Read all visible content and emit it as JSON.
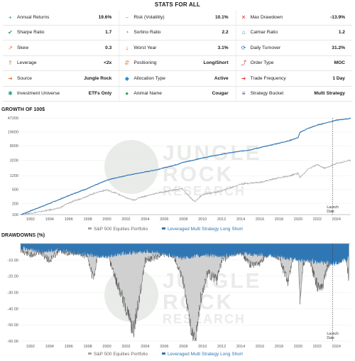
{
  "stats_title": "STATS FOR ALL",
  "stats": [
    [
      {
        "label": "Annual Returns",
        "value": "19.6%",
        "icon": "plus-icon",
        "color": "#2e9a4a"
      },
      {
        "label": "Risk (Volatility)",
        "value": "10.1%",
        "icon": "minus-icon",
        "color": "#e07a3a"
      },
      {
        "label": "Max Drawdown",
        "value": "-13.9%",
        "icon": "close-icon",
        "color": "#d9363e"
      }
    ],
    [
      {
        "label": "Sharpe Ratio",
        "value": "1.7",
        "icon": "check-icon",
        "color": "#2e9a6a"
      },
      {
        "label": "Sortino Ratio",
        "value": "2.2",
        "icon": "gauge-icon",
        "color": "#2e8a7a"
      },
      {
        "label": "Calmar Ratio",
        "value": "1.2",
        "icon": "bell-icon",
        "color": "#2e8a7a"
      }
    ],
    [
      {
        "label": "Skew",
        "value": "0.3",
        "icon": "trend-up-icon",
        "color": "#e07a3a"
      },
      {
        "label": "Worst Year",
        "value": "3.1%",
        "icon": "arrow-down-icon",
        "color": "#d9363e"
      },
      {
        "label": "Daily Turnover",
        "value": "31.2%",
        "icon": "refresh-icon",
        "color": "#2e6fb0"
      }
    ],
    [
      {
        "label": "Leverage",
        "value": "<2x",
        "icon": "chevrons-up-icon",
        "color": "#e07a3a"
      },
      {
        "label": "Positioning",
        "value": "Long/Short",
        "icon": "arrows-updown-icon",
        "color": "#e07a3a"
      },
      {
        "label": "Order Type",
        "value": "MOC",
        "icon": "share-icon",
        "color": "#d9363e"
      }
    ],
    [
      {
        "label": "Source",
        "value": "Jungle Rock",
        "icon": "arrow-right-box-icon",
        "color": "#e07a3a"
      },
      {
        "label": "Allocation Type",
        "value": "Active",
        "icon": "tag-icon",
        "color": "#2e8ad0"
      },
      {
        "label": "Trade Frequency",
        "value": "1 Day",
        "icon": "arrow-right-circle-icon",
        "color": "#d9363e"
      }
    ],
    [
      {
        "label": "Investment Universe",
        "value": "ETFs Only",
        "icon": "asterisk-icon",
        "color": "#2e9a8a"
      },
      {
        "label": "Animal Name",
        "value": "Cougar",
        "icon": "paw-icon",
        "color": "#2e9a6a"
      },
      {
        "label": "Strategy Bucket",
        "value": "Multi Strategy",
        "icon": "list-icon",
        "color": "#1d3f7a"
      }
    ]
  ],
  "growth_title": "GROWTH OF 100$",
  "drawdown_title": "DRAWDOWNS (%)",
  "watermark": {
    "line1": "JUNGLE",
    "line2": "ROCK",
    "line3": "RESEARCH"
  },
  "colors": {
    "strategy": "#2f76b5",
    "benchmark": "#a8a8a8",
    "benchmark_fill": "#d0d0d0"
  },
  "chart_data": [
    {
      "type": "line",
      "title": "GROWTH OF 100$",
      "y_scale": "log",
      "ylim": [
        100,
        47200
      ],
      "yticks": [
        100,
        200,
        500,
        1200,
        3200,
        8000,
        19600,
        47200
      ],
      "x_range": [
        1990.9,
        2025.5
      ],
      "xticks": [
        1992,
        1994,
        1996,
        1998,
        2000,
        2002,
        2004,
        2006,
        2008,
        2010,
        2012,
        2014,
        2016,
        2018,
        2020,
        2022,
        2024
      ],
      "annotation": {
        "label": "Launch Date",
        "x": 2023.6
      },
      "legend": {
        "position": "bottom",
        "entries": [
          "S&P 500 Equities Portfolio",
          "Leveraged Multi Strategy Long Short"
        ]
      },
      "series": [
        {
          "name": "Leveraged Multi Strategy Long Short",
          "x": [
            1991,
            1993,
            1995,
            1996.5,
            1998,
            2000,
            2001,
            2002,
            2003,
            2005,
            2007,
            2008,
            2009,
            2011,
            2013,
            2015,
            2017,
            2019,
            2020,
            2020.2,
            2021,
            2022,
            2023,
            2024,
            2025.5
          ],
          "y": [
            100,
            160,
            260,
            380,
            530,
            900,
            1050,
            1200,
            1350,
            1700,
            2300,
            2800,
            3200,
            4200,
            5200,
            6200,
            8200,
            11000,
            13500,
            19000,
            24000,
            30000,
            35000,
            41000,
            46000
          ]
        },
        {
          "name": "S&P 500 Equities Portfolio",
          "x": [
            1991,
            1993,
            1995,
            1996,
            1997,
            1998,
            1999,
            2000,
            2001,
            2002,
            2002.8,
            2003.5,
            2005,
            2007,
            2007.9,
            2008.8,
            2009.2,
            2010,
            2012,
            2014,
            2015,
            2016,
            2018,
            2019,
            2020,
            2020.2,
            2021,
            2022,
            2022.8,
            2024,
            2025.5
          ],
          "y": [
            100,
            120,
            150,
            210,
            260,
            330,
            420,
            480,
            390,
            290,
            250,
            300,
            380,
            480,
            520,
            280,
            230,
            360,
            450,
            700,
            750,
            780,
            1050,
            1150,
            1400,
            1050,
            1800,
            2400,
            1900,
            2600,
            3200
          ]
        }
      ]
    },
    {
      "type": "area",
      "title": "DRAWDOWNS (%)",
      "ylim": [
        -60,
        0
      ],
      "yticks": [
        -10,
        -20,
        -30,
        -40,
        -50,
        -60
      ],
      "x_range": [
        1990.9,
        2025.5
      ],
      "xticks": [
        1992,
        1994,
        1996,
        1998,
        2000,
        2002,
        2004,
        2006,
        2008,
        2010,
        2012,
        2014,
        2016,
        2018,
        2020,
        2022,
        2024
      ],
      "annotation": {
        "label": "Launch Date",
        "x": 2023.6
      },
      "legend": {
        "position": "bottom",
        "entries": [
          "S&P 500 Equities Portfolio",
          "Leveraged Multi Strategy Long Short"
        ]
      },
      "series": [
        {
          "name": "S&P 500 Equities Portfolio",
          "x": [
            1991,
            1992,
            1993,
            1994,
            1995,
            1996,
            1997,
            1998,
            1998.6,
            1999,
            2000,
            2001,
            2001.7,
            2002.3,
            2002.8,
            2003.5,
            2004,
            2006,
            2007,
            2008,
            2008.6,
            2009.2,
            2009.8,
            2010.5,
            2011.5,
            2012,
            2013,
            2014,
            2015,
            2016,
            2017,
            2018,
            2018.9,
            2019.5,
            2020,
            2020.2,
            2020.5,
            2021,
            2022,
            2022.5,
            2023,
            2024,
            2025,
            2025.3
          ],
          "y": [
            -2,
            -5,
            -3,
            -8,
            -2,
            -4,
            -3,
            -6,
            -19,
            -5,
            -3,
            -20,
            -30,
            -40,
            -48,
            -25,
            -8,
            -4,
            -5,
            -20,
            -40,
            -55,
            -30,
            -15,
            -19,
            -8,
            -4,
            -3,
            -10,
            -9,
            -3,
            -6,
            -20,
            -6,
            -3,
            -34,
            -10,
            -4,
            -22,
            -24,
            -12,
            -4,
            -6,
            -18
          ]
        },
        {
          "name": "Leveraged Multi Strategy Long Short",
          "x": [
            1991,
            1993,
            1995,
            1998,
            2000,
            2002,
            2005,
            2008,
            2010,
            2012,
            2014,
            2016,
            2018,
            2020,
            2022,
            2024,
            2025.3
          ],
          "y": [
            -1,
            -3,
            -2,
            -5,
            -6,
            -4,
            -3,
            -7,
            -5,
            -6,
            -4,
            -5,
            -6,
            -8,
            -9,
            -10,
            -7
          ]
        }
      ]
    }
  ]
}
